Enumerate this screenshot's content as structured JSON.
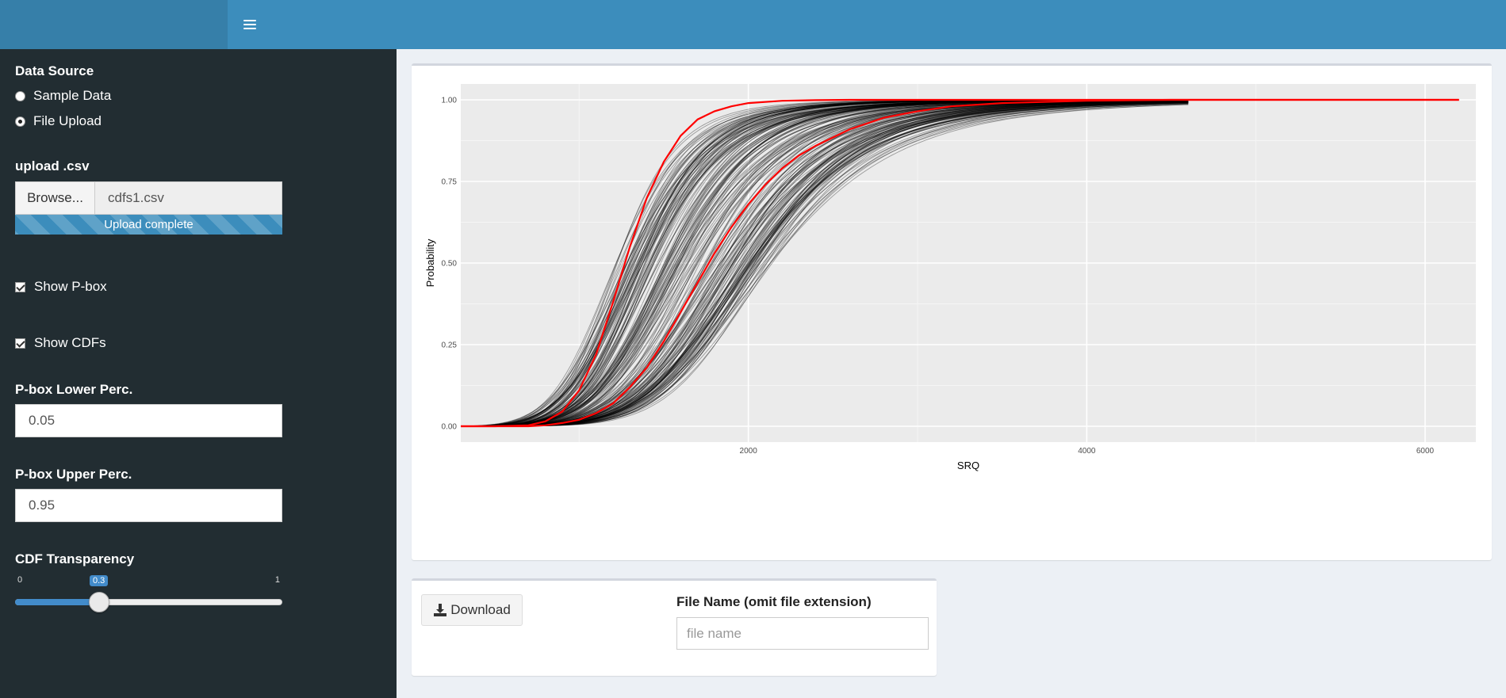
{
  "topbar": {
    "menu_icon": "hamburger-icon"
  },
  "sidebar": {
    "data_source": {
      "label": "Data Source",
      "options": [
        "Sample Data",
        "File Upload"
      ],
      "selected": "File Upload"
    },
    "upload": {
      "label": "upload .csv",
      "browse_label": "Browse...",
      "file_name": "cdfs1.csv",
      "progress_text": "Upload complete",
      "progress": 1.0
    },
    "show_pbox": {
      "label": "Show P-box",
      "checked": true
    },
    "show_cdfs": {
      "label": "Show CDFs",
      "checked": true
    },
    "pbox_lower": {
      "label": "P-box Lower Perc.",
      "value": "0.05"
    },
    "pbox_upper": {
      "label": "P-box Upper Perc.",
      "value": "0.95"
    },
    "transparency": {
      "label": "CDF Transparency",
      "min": "0",
      "max": "1",
      "value": "0.3"
    }
  },
  "download": {
    "button_label": "Download",
    "icon": "download-icon",
    "file_name_label": "File Name (omit file extension)",
    "file_name_placeholder": "file name"
  },
  "chart_data": {
    "type": "line",
    "title": "",
    "xlabel": "SRQ",
    "ylabel": "Probability",
    "xlim": [
      300,
      6300
    ],
    "ylim": [
      0,
      1
    ],
    "x_ticks": [
      "2000",
      "4000",
      "6000"
    ],
    "y_ticks": [
      "0.00",
      "0.25",
      "0.50",
      "0.75",
      "1.00"
    ],
    "grid": true,
    "background": "#ebebeb",
    "cdf_color": "#000000",
    "pbox_color": "#ff0000",
    "n_cdfs": 200,
    "cdf_median_range": [
      1200,
      2150
    ],
    "series": [
      {
        "x": [
          300,
          500,
          700,
          800,
          900,
          1000,
          1100,
          1200,
          1300,
          1400,
          1500,
          1600,
          1700,
          1800,
          1900,
          2000,
          2200,
          2400,
          2600,
          2800,
          3200,
          4000,
          6200
        ],
        "y": [
          0.0,
          0.0,
          0.003,
          0.015,
          0.045,
          0.11,
          0.22,
          0.38,
          0.55,
          0.7,
          0.81,
          0.89,
          0.94,
          0.965,
          0.98,
          0.99,
          0.997,
          0.999,
          1.0,
          1.0,
          1.0,
          1.0,
          1.0
        ]
      },
      {
        "x": [
          300,
          700,
          800,
          900,
          1000,
          1100,
          1200,
          1300,
          1400,
          1500,
          1600,
          1700,
          1800,
          1900,
          2000,
          2100,
          2200,
          2300,
          2400,
          2600,
          2800,
          3000,
          3200,
          3500,
          4000,
          4500,
          6200
        ],
        "y": [
          0.0,
          0.0,
          0.003,
          0.01,
          0.02,
          0.04,
          0.07,
          0.12,
          0.18,
          0.26,
          0.35,
          0.44,
          0.53,
          0.61,
          0.68,
          0.74,
          0.79,
          0.83,
          0.86,
          0.91,
          0.945,
          0.965,
          0.98,
          0.99,
          0.997,
          1.0,
          1.0
        ]
      }
    ]
  }
}
